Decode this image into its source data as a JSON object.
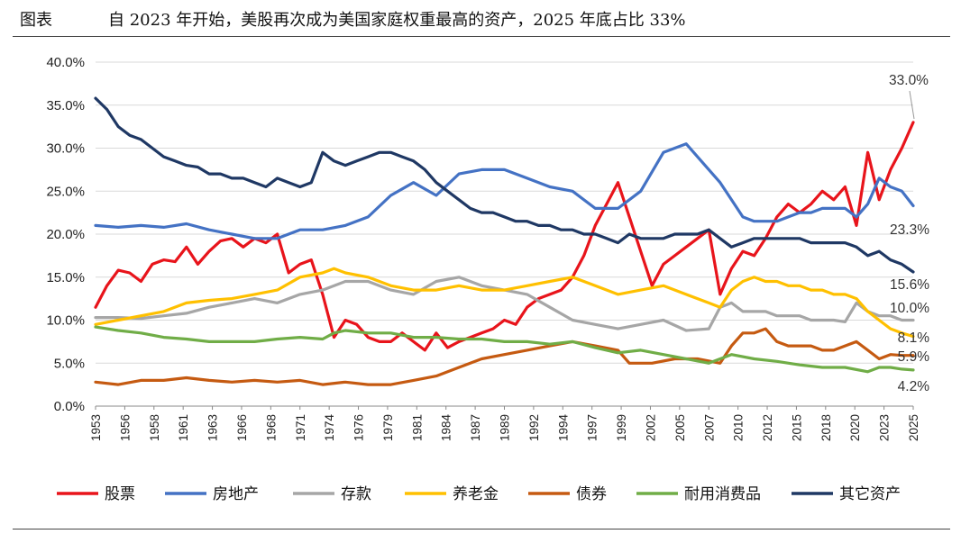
{
  "header": {
    "label": "图表",
    "title": "自 2023 年开始，美股再次成为美国家庭权重最高的资产，2025 年底占比 33%"
  },
  "chart_data": {
    "type": "line",
    "title": "自 2023 年开始，美股再次成为美国家庭权重最高的资产，2025 年底占比 33%",
    "xlabel": "",
    "ylabel": "",
    "xlim": [
      1953,
      2025
    ],
    "ylim": [
      0,
      40
    ],
    "y_ticks": [
      "0.0%",
      "5.0%",
      "10.0%",
      "15.0%",
      "20.0%",
      "25.0%",
      "30.0%",
      "35.0%",
      "40.0%"
    ],
    "x_ticks": [
      "1953",
      "1956",
      "1958",
      "1961",
      "1963",
      "1966",
      "1968",
      "1971",
      "1974",
      "1976",
      "1979",
      "1981",
      "1984",
      "1987",
      "1989",
      "1992",
      "1994",
      "1997",
      "1999",
      "2002",
      "2005",
      "2007",
      "2010",
      "2012",
      "2015",
      "2018",
      "2020",
      "2023",
      "2025"
    ],
    "legend_position": "bottom",
    "series": [
      {
        "name": "股票",
        "color": "#e8141b",
        "x": [
          1953,
          1954,
          1955,
          1956,
          1957,
          1958,
          1959,
          1960,
          1961,
          1962,
          1963,
          1964,
          1965,
          1966,
          1967,
          1968,
          1969,
          1970,
          1971,
          1972,
          1973,
          1974,
          1975,
          1976,
          1977,
          1978,
          1979,
          1980,
          1981,
          1982,
          1983,
          1984,
          1985,
          1986,
          1987,
          1988,
          1989,
          1990,
          1991,
          1992,
          1993,
          1994,
          1995,
          1996,
          1997,
          1998,
          1999,
          2000,
          2001,
          2002,
          2003,
          2004,
          2005,
          2006,
          2007,
          2008,
          2009,
          2010,
          2011,
          2012,
          2013,
          2014,
          2015,
          2016,
          2017,
          2018,
          2019,
          2020,
          2021,
          2022,
          2023,
          2024,
          2025
        ],
        "values": [
          11.5,
          14.0,
          15.8,
          15.5,
          14.5,
          16.5,
          17.0,
          16.8,
          18.5,
          16.5,
          18.0,
          19.2,
          19.5,
          18.5,
          19.5,
          19.0,
          20.0,
          15.5,
          16.5,
          17.0,
          13.0,
          8.0,
          10.0,
          9.5,
          8.0,
          7.5,
          7.5,
          8.5,
          7.5,
          6.5,
          8.5,
          6.8,
          7.5,
          8.0,
          8.5,
          9.0,
          10.0,
          9.5,
          11.5,
          12.5,
          13.0,
          13.5,
          15.0,
          17.5,
          21.0,
          23.5,
          26.0,
          22.0,
          18.0,
          14.0,
          16.5,
          17.5,
          18.5,
          19.5,
          20.5,
          13.0,
          16.0,
          18.0,
          17.5,
          19.5,
          22.0,
          23.5,
          22.5,
          23.5,
          25.0,
          24.0,
          25.5,
          21.0,
          29.5,
          24.0,
          27.5,
          30.0,
          33.0
        ]
      },
      {
        "name": "房地产",
        "color": "#4472c4",
        "x": [
          1953,
          1955,
          1957,
          1959,
          1961,
          1963,
          1965,
          1967,
          1969,
          1971,
          1973,
          1975,
          1977,
          1979,
          1981,
          1983,
          1985,
          1987,
          1989,
          1991,
          1993,
          1995,
          1997,
          1999,
          2001,
          2003,
          2005,
          2006,
          2007,
          2008,
          2009,
          2010,
          2011,
          2012,
          2013,
          2014,
          2015,
          2016,
          2017,
          2018,
          2019,
          2020,
          2021,
          2022,
          2023,
          2024,
          2025
        ],
        "values": [
          21.0,
          20.8,
          21.0,
          20.8,
          21.2,
          20.5,
          20.0,
          19.5,
          19.5,
          20.5,
          20.5,
          21.0,
          22.0,
          24.5,
          26.0,
          24.5,
          27.0,
          27.5,
          27.5,
          26.5,
          25.5,
          25.0,
          23.0,
          23.0,
          25.0,
          29.5,
          30.5,
          29.0,
          27.5,
          26.0,
          24.0,
          22.0,
          21.5,
          21.5,
          21.5,
          22.0,
          22.5,
          22.5,
          23.0,
          23.0,
          23.0,
          22.0,
          23.5,
          26.5,
          25.5,
          25.0,
          23.3
        ]
      },
      {
        "name": "存款",
        "color": "#a6a6a6",
        "x": [
          1953,
          1955,
          1957,
          1959,
          1961,
          1963,
          1965,
          1967,
          1969,
          1971,
          1973,
          1975,
          1977,
          1979,
          1981,
          1983,
          1985,
          1987,
          1989,
          1991,
          1993,
          1995,
          1997,
          1999,
          2001,
          2003,
          2005,
          2007,
          2008,
          2009,
          2010,
          2011,
          2012,
          2013,
          2014,
          2015,
          2016,
          2017,
          2018,
          2019,
          2020,
          2021,
          2022,
          2023,
          2024,
          2025
        ],
        "values": [
          10.3,
          10.3,
          10.2,
          10.5,
          10.8,
          11.5,
          12.0,
          12.5,
          12.0,
          13.0,
          13.5,
          14.5,
          14.5,
          13.5,
          13.0,
          14.5,
          15.0,
          14.0,
          13.5,
          13.0,
          11.5,
          10.0,
          9.5,
          9.0,
          9.5,
          10.0,
          8.8,
          9.0,
          11.5,
          12.0,
          11.0,
          11.0,
          11.0,
          10.5,
          10.5,
          10.5,
          10.0,
          10.0,
          10.0,
          9.8,
          12.0,
          11.0,
          10.5,
          10.5,
          10.0,
          10.0
        ]
      },
      {
        "name": "养老金",
        "color": "#ffc000",
        "x": [
          1953,
          1955,
          1957,
          1959,
          1961,
          1963,
          1965,
          1967,
          1969,
          1971,
          1973,
          1974,
          1975,
          1977,
          1979,
          1981,
          1983,
          1985,
          1987,
          1989,
          1991,
          1993,
          1995,
          1997,
          1999,
          2001,
          2003,
          2005,
          2007,
          2008,
          2009,
          2010,
          2011,
          2012,
          2013,
          2014,
          2015,
          2016,
          2017,
          2018,
          2019,
          2020,
          2021,
          2022,
          2023,
          2024,
          2025
        ],
        "values": [
          9.5,
          10.0,
          10.5,
          11.0,
          12.0,
          12.3,
          12.5,
          13.0,
          13.5,
          15.0,
          15.5,
          16.0,
          15.5,
          15.0,
          14.0,
          13.5,
          13.5,
          14.0,
          13.5,
          13.5,
          14.0,
          14.5,
          15.0,
          14.0,
          13.0,
          13.5,
          14.0,
          13.0,
          12.0,
          11.5,
          13.5,
          14.5,
          15.0,
          14.5,
          14.5,
          14.0,
          14.0,
          13.5,
          13.5,
          13.0,
          13.0,
          12.5,
          11.0,
          10.0,
          9.0,
          8.5,
          8.1
        ]
      },
      {
        "name": "债券",
        "color": "#c55a11",
        "x": [
          1953,
          1955,
          1957,
          1959,
          1961,
          1963,
          1965,
          1967,
          1969,
          1971,
          1973,
          1975,
          1977,
          1979,
          1981,
          1983,
          1985,
          1987,
          1989,
          1991,
          1993,
          1995,
          1997,
          1999,
          2000,
          2002,
          2004,
          2006,
          2008,
          2009,
          2010,
          2011,
          2012,
          2013,
          2014,
          2015,
          2016,
          2017,
          2018,
          2019,
          2020,
          2021,
          2022,
          2023,
          2024,
          2025
        ],
        "values": [
          2.8,
          2.5,
          3.0,
          3.0,
          3.3,
          3.0,
          2.8,
          3.0,
          2.8,
          3.0,
          2.5,
          2.8,
          2.5,
          2.5,
          3.0,
          3.5,
          4.5,
          5.5,
          6.0,
          6.5,
          7.0,
          7.5,
          7.0,
          6.5,
          5.0,
          5.0,
          5.5,
          5.5,
          5.0,
          7.0,
          8.5,
          8.5,
          9.0,
          7.5,
          7.0,
          7.0,
          7.0,
          6.5,
          6.5,
          7.0,
          7.5,
          6.5,
          5.5,
          6.0,
          5.9,
          5.9
        ]
      },
      {
        "name": "耐用消费品",
        "color": "#70ad47",
        "x": [
          1953,
          1955,
          1957,
          1959,
          1961,
          1963,
          1965,
          1967,
          1969,
          1971,
          1973,
          1974,
          1975,
          1977,
          1979,
          1981,
          1983,
          1985,
          1987,
          1989,
          1991,
          1993,
          1995,
          1997,
          1999,
          2001,
          2003,
          2005,
          2007,
          2009,
          2011,
          2013,
          2015,
          2017,
          2019,
          2021,
          2022,
          2023,
          2024,
          2025
        ],
        "values": [
          9.2,
          8.8,
          8.5,
          8.0,
          7.8,
          7.5,
          7.5,
          7.5,
          7.8,
          8.0,
          7.8,
          8.5,
          8.8,
          8.5,
          8.5,
          8.0,
          8.0,
          7.8,
          7.8,
          7.5,
          7.5,
          7.2,
          7.5,
          6.8,
          6.2,
          6.5,
          6.0,
          5.5,
          5.0,
          6.0,
          5.5,
          5.2,
          4.8,
          4.5,
          4.5,
          4.0,
          4.5,
          4.5,
          4.3,
          4.2
        ]
      },
      {
        "name": "其它资产",
        "color": "#1f3864",
        "x": [
          1953,
          1954,
          1955,
          1956,
          1957,
          1958,
          1959,
          1960,
          1961,
          1962,
          1963,
          1964,
          1965,
          1966,
          1967,
          1968,
          1969,
          1970,
          1971,
          1972,
          1973,
          1974,
          1975,
          1976,
          1977,
          1978,
          1979,
          1980,
          1981,
          1982,
          1983,
          1984,
          1985,
          1986,
          1987,
          1988,
          1989,
          1990,
          1991,
          1992,
          1993,
          1994,
          1995,
          1996,
          1997,
          1998,
          1999,
          2000,
          2001,
          2002,
          2003,
          2004,
          2005,
          2006,
          2007,
          2008,
          2009,
          2010,
          2011,
          2012,
          2013,
          2014,
          2015,
          2016,
          2017,
          2018,
          2019,
          2020,
          2021,
          2022,
          2023,
          2024,
          2025
        ],
        "values": [
          35.8,
          34.5,
          32.5,
          31.5,
          31.0,
          30.0,
          29.0,
          28.5,
          28.0,
          27.8,
          27.0,
          27.0,
          26.5,
          26.5,
          26.0,
          25.5,
          26.5,
          26.0,
          25.5,
          26.0,
          29.5,
          28.5,
          28.0,
          28.5,
          29.0,
          29.5,
          29.5,
          29.0,
          28.5,
          27.5,
          26.0,
          25.0,
          24.0,
          23.0,
          22.5,
          22.5,
          22.0,
          21.5,
          21.5,
          21.0,
          21.0,
          20.5,
          20.5,
          20.0,
          20.0,
          19.5,
          19.0,
          20.0,
          19.5,
          19.5,
          19.5,
          20.0,
          20.0,
          20.0,
          20.5,
          19.5,
          18.5,
          19.0,
          19.5,
          19.5,
          19.5,
          19.5,
          19.5,
          19.0,
          19.0,
          19.0,
          19.0,
          18.5,
          17.5,
          18.0,
          17.0,
          16.5,
          15.6
        ]
      }
    ],
    "end_labels": [
      {
        "series": "股票",
        "text": "33.0%"
      },
      {
        "series": "房地产",
        "text": "23.3%"
      },
      {
        "series": "其它资产",
        "text": "15.6%"
      },
      {
        "series": "存款",
        "text": "10.0%"
      },
      {
        "series": "养老金",
        "text": "8.1%"
      },
      {
        "series": "债券",
        "text": "5.9%"
      },
      {
        "series": "耐用消费品",
        "text": "4.2%"
      }
    ]
  }
}
